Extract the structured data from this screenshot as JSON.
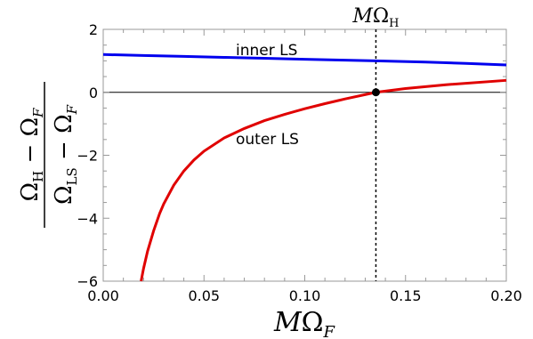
{
  "chart_data": {
    "type": "line",
    "xlim": [
      0.0,
      0.2
    ],
    "ylim": [
      -6,
      2
    ],
    "x_ticks": [
      0.0,
      0.05,
      0.1,
      0.15,
      0.2
    ],
    "x_tick_labels": [
      "0.00",
      "0.05",
      "0.10",
      "0.15",
      "0.20"
    ],
    "y_ticks": [
      2,
      0,
      -2,
      -4,
      -6
    ],
    "y_tick_labels": [
      "2",
      "0",
      "−2",
      "−4",
      "−6"
    ],
    "xlabel": "MΩ_F",
    "ylabel": "(Ω_H − Ω_F) / (Ω_LS − Ω_F)",
    "grid": false,
    "vertical_marker": {
      "x": 0.1353,
      "label": "MΩ_H",
      "style": "dotted"
    },
    "crossing_point": {
      "x": 0.1353,
      "y": 0
    },
    "series": [
      {
        "name": "inner LS",
        "color": "#0000ee",
        "x": [
          0.0,
          0.02,
          0.04,
          0.06,
          0.08,
          0.1,
          0.12,
          0.1353,
          0.16,
          0.18,
          0.2
        ],
        "y": [
          1.2,
          1.17,
          1.14,
          1.11,
          1.08,
          1.05,
          1.02,
          1.0,
          0.96,
          0.92,
          0.87
        ]
      },
      {
        "name": "outer LS",
        "color": "#e00000",
        "x": [
          0.0188,
          0.02,
          0.022,
          0.025,
          0.028,
          0.03,
          0.035,
          0.04,
          0.045,
          0.05,
          0.06,
          0.07,
          0.08,
          0.09,
          0.1,
          0.11,
          0.12,
          0.1353,
          0.15,
          0.17,
          0.2
        ],
        "y": [
          -6.0,
          -5.6,
          -5.05,
          -4.4,
          -3.85,
          -3.55,
          -2.95,
          -2.5,
          -2.15,
          -1.87,
          -1.45,
          -1.15,
          -0.9,
          -0.7,
          -0.52,
          -0.36,
          -0.21,
          0.0,
          0.12,
          0.24,
          0.38
        ]
      }
    ]
  }
}
